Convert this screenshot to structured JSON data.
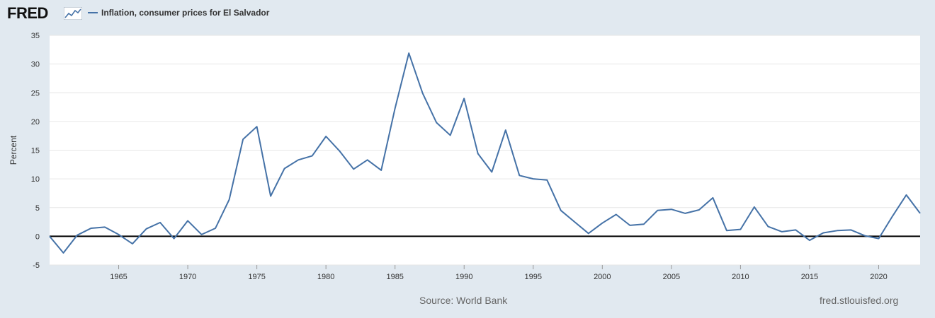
{
  "brand": {
    "logo_text": "FRED",
    "icon": "fred-trend-graph-icon"
  },
  "colors": {
    "background": "#e1e9f0",
    "plot_bg": "#ffffff",
    "series": "#4572a7",
    "zero_line": "#000000",
    "grid": "#e6e6e6"
  },
  "footer": {
    "source": "Source: World Bank",
    "site": "fred.stlouisfed.org"
  },
  "chart_data": {
    "type": "line",
    "title": "",
    "ylabel": "Percent",
    "xlabel": "",
    "xlim": [
      1960,
      2023
    ],
    "ylim": [
      -5,
      35
    ],
    "yticks": [
      -5,
      0,
      5,
      10,
      15,
      20,
      25,
      30,
      35
    ],
    "xticks": [
      1965,
      1970,
      1975,
      1980,
      1985,
      1990,
      1995,
      2000,
      2005,
      2010,
      2015,
      2020
    ],
    "grid": true,
    "legend_position": "top-left",
    "series": [
      {
        "name": "Inflation, consumer prices for El Salvador",
        "x": [
          1960,
          1961,
          1962,
          1963,
          1964,
          1965,
          1966,
          1967,
          1968,
          1969,
          1970,
          1971,
          1972,
          1973,
          1974,
          1975,
          1976,
          1977,
          1978,
          1979,
          1980,
          1981,
          1982,
          1983,
          1984,
          1985,
          1986,
          1987,
          1988,
          1989,
          1990,
          1991,
          1992,
          1993,
          1994,
          1995,
          1996,
          1997,
          1998,
          1999,
          2000,
          2001,
          2002,
          2003,
          2004,
          2005,
          2006,
          2007,
          2008,
          2009,
          2010,
          2011,
          2012,
          2013,
          2014,
          2015,
          2016,
          2017,
          2018,
          2019,
          2020,
          2021,
          2022,
          2023
        ],
        "y": [
          0.0,
          -2.9,
          0.2,
          1.4,
          1.6,
          0.3,
          -1.3,
          1.3,
          2.4,
          -0.4,
          2.7,
          0.3,
          1.4,
          6.4,
          16.9,
          19.1,
          7.0,
          11.8,
          13.3,
          14.0,
          17.4,
          14.8,
          11.7,
          13.3,
          11.5,
          22.3,
          31.9,
          24.9,
          19.8,
          17.6,
          24.0,
          14.4,
          11.2,
          18.5,
          10.6,
          10.0,
          9.8,
          4.5,
          2.5,
          0.5,
          2.3,
          3.8,
          1.9,
          2.1,
          4.5,
          4.7,
          4.0,
          4.6,
          6.7,
          1.0,
          1.2,
          5.1,
          1.7,
          0.8,
          1.1,
          -0.7,
          0.6,
          1.0,
          1.1,
          0.1,
          -0.4,
          3.5,
          7.2,
          4.0
        ]
      }
    ]
  }
}
